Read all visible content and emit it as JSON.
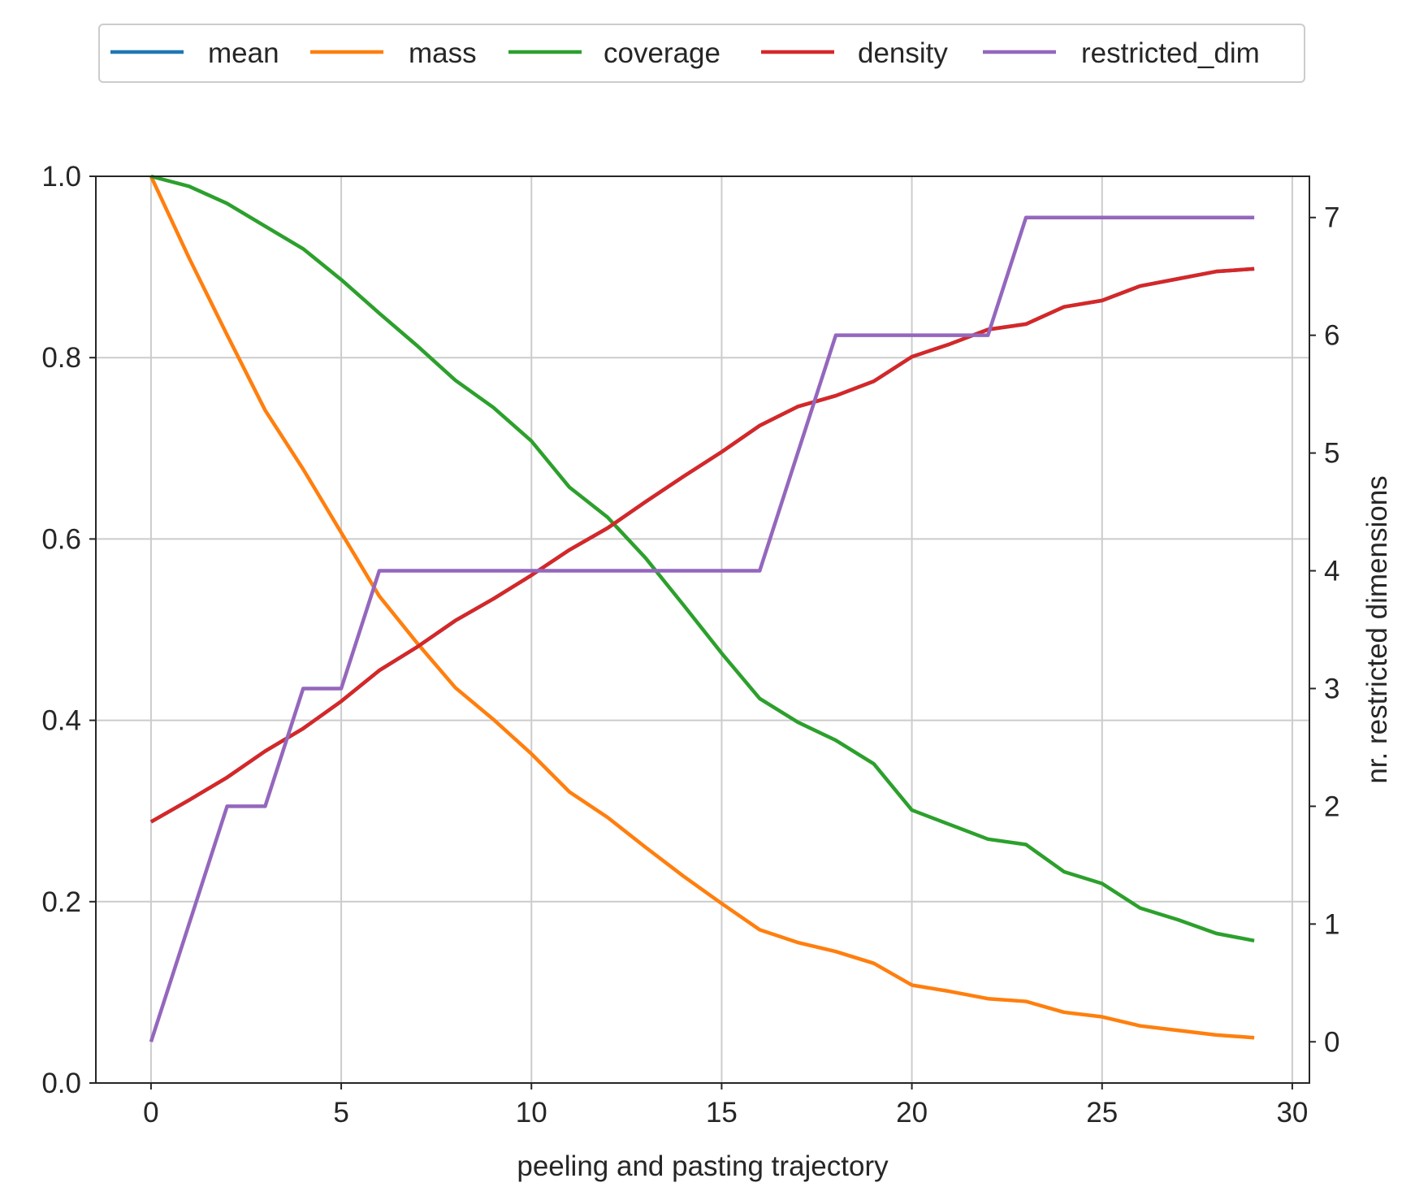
{
  "chart_data": {
    "type": "line",
    "title": "",
    "xlabel": "peeling and pasting trajectory",
    "ylabel": "",
    "y2label": "nr. restricted dimensions",
    "xlim": [
      -1.45,
      30.45
    ],
    "ylim": [
      0.0,
      1.0
    ],
    "y2lim": [
      -0.35,
      7.35
    ],
    "x_ticks": [
      0,
      5,
      10,
      15,
      20,
      25,
      30
    ],
    "x_tick_labels": [
      "0",
      "5",
      "10",
      "15",
      "20",
      "25",
      "30"
    ],
    "y_ticks": [
      0.0,
      0.2,
      0.4,
      0.6,
      0.8,
      1.0
    ],
    "y_tick_labels": [
      "0.0",
      "0.2",
      "0.4",
      "0.6",
      "0.8",
      "1.0"
    ],
    "y2_ticks": [
      0,
      1,
      2,
      3,
      4,
      5,
      6,
      7
    ],
    "y2_tick_labels": [
      "0",
      "1",
      "2",
      "3",
      "4",
      "5",
      "6",
      "7"
    ],
    "grid": true,
    "legend_position": "top-center, above plot",
    "x": [
      0,
      1,
      2,
      3,
      4,
      5,
      6,
      7,
      8,
      9,
      10,
      11,
      12,
      13,
      14,
      15,
      16,
      17,
      18,
      19,
      20,
      21,
      22,
      23,
      24,
      25,
      26,
      27,
      28,
      29
    ],
    "series": [
      {
        "name": "mean",
        "color": "#1f77b4",
        "axis": "left",
        "values": [
          0.288,
          0.312,
          0.337,
          0.366,
          0.391,
          0.421,
          0.455,
          0.481,
          0.51,
          0.534,
          0.56,
          0.588,
          0.612,
          0.641,
          0.669,
          0.696,
          0.725,
          0.746,
          0.758,
          0.774,
          0.801,
          0.815,
          0.831,
          0.837,
          0.856,
          0.863,
          0.879,
          0.887,
          0.895,
          0.898
        ]
      },
      {
        "name": "mass",
        "color": "#ff7f0e",
        "axis": "left",
        "values": [
          1.0,
          0.91,
          0.825,
          0.742,
          0.677,
          0.607,
          0.537,
          0.485,
          0.436,
          0.401,
          0.363,
          0.321,
          0.293,
          0.26,
          0.228,
          0.198,
          0.169,
          0.155,
          0.145,
          0.132,
          0.108,
          0.101,
          0.093,
          0.09,
          0.078,
          0.073,
          0.063,
          0.058,
          0.053,
          0.05
        ]
      },
      {
        "name": "coverage",
        "color": "#2ca02c",
        "axis": "left",
        "values": [
          1.0,
          0.989,
          0.97,
          0.945,
          0.92,
          0.886,
          0.849,
          0.813,
          0.775,
          0.745,
          0.708,
          0.657,
          0.624,
          0.579,
          0.527,
          0.474,
          0.424,
          0.398,
          0.378,
          0.352,
          0.301,
          0.285,
          0.269,
          0.263,
          0.233,
          0.22,
          0.193,
          0.18,
          0.165,
          0.157
        ]
      },
      {
        "name": "density",
        "color": "#d62728",
        "axis": "left",
        "values": [
          0.288,
          0.312,
          0.337,
          0.366,
          0.391,
          0.421,
          0.455,
          0.481,
          0.51,
          0.534,
          0.56,
          0.588,
          0.612,
          0.641,
          0.669,
          0.696,
          0.725,
          0.746,
          0.758,
          0.774,
          0.801,
          0.815,
          0.831,
          0.837,
          0.856,
          0.863,
          0.879,
          0.887,
          0.895,
          0.898
        ]
      },
      {
        "name": "restricted_dim",
        "color": "#9467bd",
        "axis": "right",
        "values": [
          0,
          1,
          2,
          2,
          3,
          3,
          4,
          4,
          4,
          4,
          4,
          4,
          4,
          4,
          4,
          4,
          4,
          5,
          6,
          6,
          6,
          6,
          6,
          7,
          7,
          7,
          7,
          7,
          7,
          7
        ]
      }
    ]
  }
}
